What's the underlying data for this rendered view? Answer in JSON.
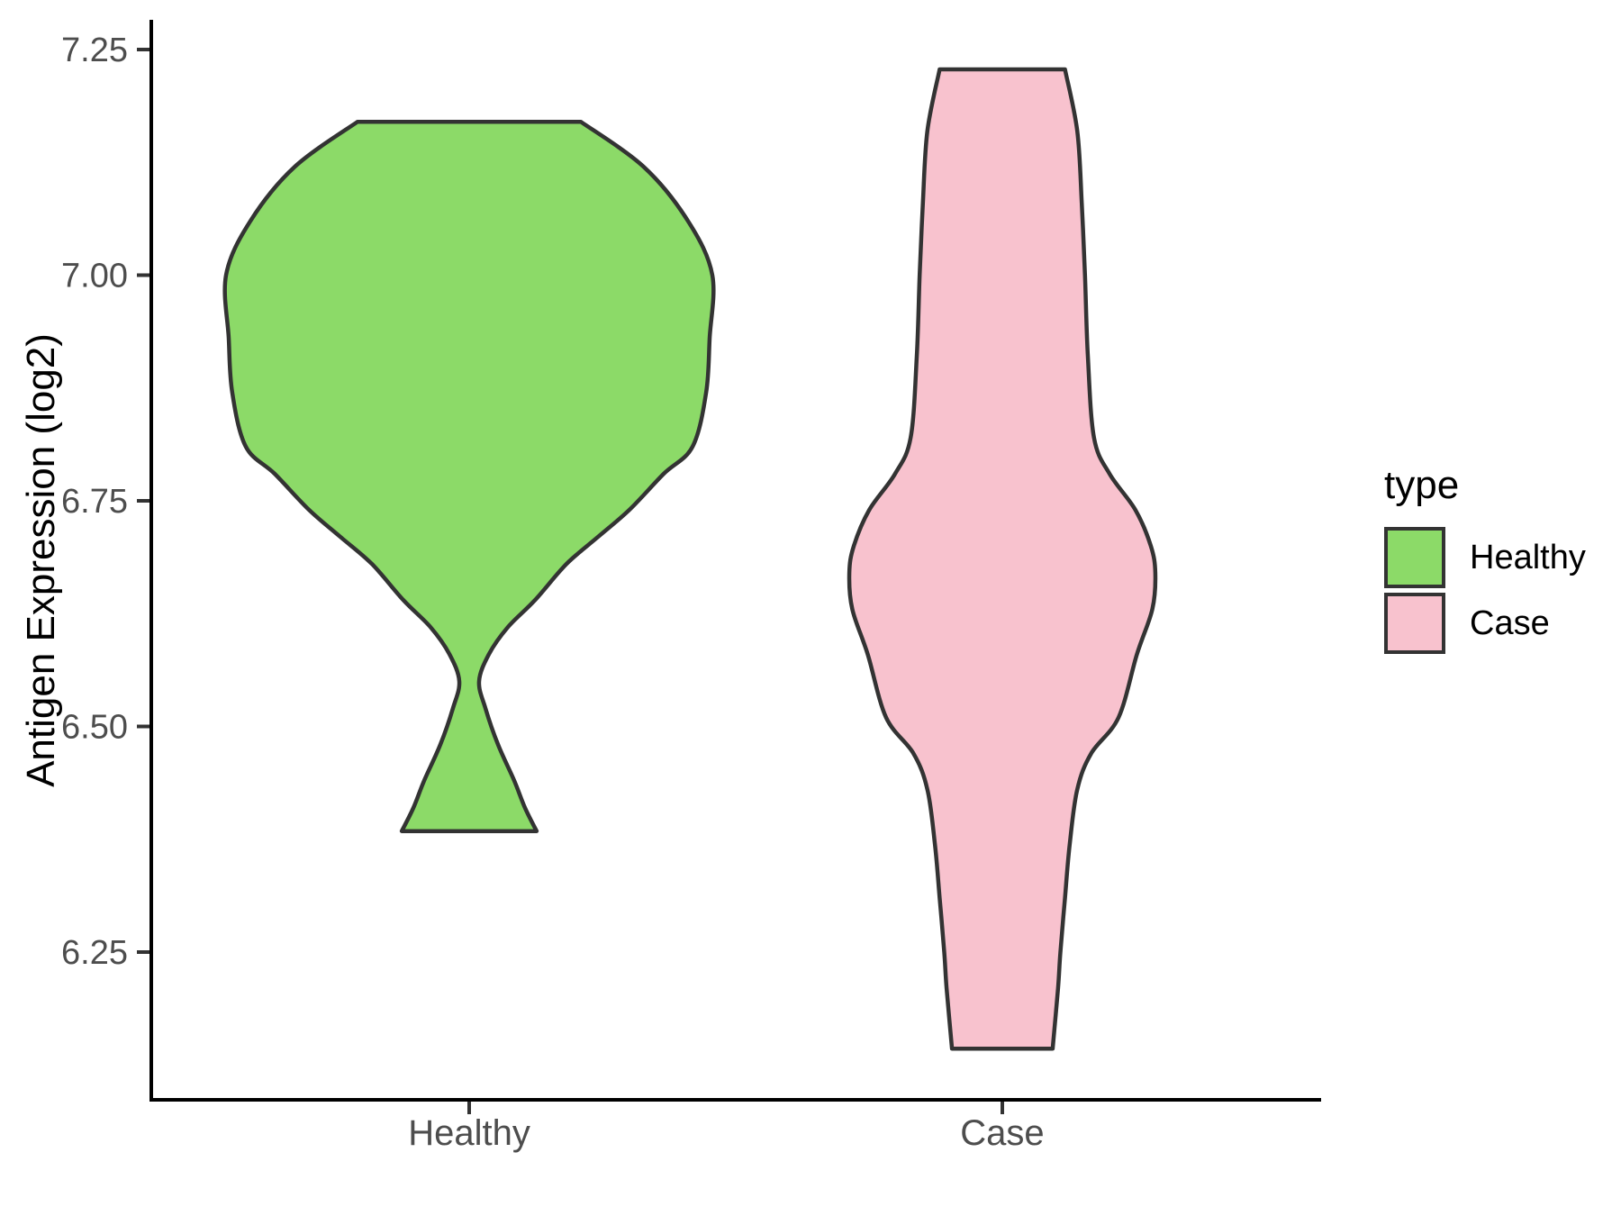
{
  "chart_data": {
    "type": "violin",
    "title": "",
    "xlabel": "",
    "ylabel": "Antigen Expression (log2)",
    "categories": [
      "Healthy",
      "Case"
    ],
    "ylim": [
      6.085,
      7.283
    ],
    "yticks": [
      {
        "v": 7.25,
        "label": "7.25"
      },
      {
        "v": 7.0,
        "label": "7.00"
      },
      {
        "v": 6.75,
        "label": "6.75"
      },
      {
        "v": 6.5,
        "label": "6.50"
      },
      {
        "v": 6.25,
        "label": "6.25"
      }
    ],
    "grid": false,
    "legend_title": "type",
    "legend_position": "right",
    "series": [
      {
        "name": "Healthy",
        "fill": "#8CDA68",
        "outline": "#333333",
        "data_range": [
          6.384,
          7.17
        ],
        "profile": [
          [
            7.17,
            0.419
          ],
          [
            7.12,
            0.655
          ],
          [
            7.06,
            0.821
          ],
          [
            7.0,
            0.912
          ],
          [
            6.93,
            0.902
          ],
          [
            6.87,
            0.889
          ],
          [
            6.81,
            0.838
          ],
          [
            6.78,
            0.73
          ],
          [
            6.74,
            0.601
          ],
          [
            6.71,
            0.483
          ],
          [
            6.68,
            0.365
          ],
          [
            6.64,
            0.247
          ],
          [
            6.61,
            0.145
          ],
          [
            6.58,
            0.074
          ],
          [
            6.55,
            0.037
          ],
          [
            6.52,
            0.061
          ],
          [
            6.48,
            0.108
          ],
          [
            6.44,
            0.169
          ],
          [
            6.41,
            0.209
          ],
          [
            6.384,
            0.253
          ]
        ]
      },
      {
        "name": "Case",
        "fill": "#F8C2CE",
        "outline": "#333333",
        "data_range": [
          6.143,
          7.228
        ],
        "profile": [
          [
            7.228,
            0.235
          ],
          [
            7.16,
            0.281
          ],
          [
            7.08,
            0.298
          ],
          [
            7.0,
            0.31
          ],
          [
            6.91,
            0.321
          ],
          [
            6.82,
            0.344
          ],
          [
            6.78,
            0.402
          ],
          [
            6.74,
            0.499
          ],
          [
            6.7,
            0.557
          ],
          [
            6.67,
            0.574
          ],
          [
            6.63,
            0.563
          ],
          [
            6.58,
            0.505
          ],
          [
            6.51,
            0.436
          ],
          [
            6.47,
            0.333
          ],
          [
            6.43,
            0.281
          ],
          [
            6.37,
            0.253
          ],
          [
            6.31,
            0.235
          ],
          [
            6.25,
            0.218
          ],
          [
            6.21,
            0.209
          ],
          [
            6.143,
            0.189
          ]
        ]
      }
    ],
    "colors": {
      "axis_line": "#000000",
      "tick_mark": "#333333",
      "tick_label": "#4D4D4D",
      "text": "#000000",
      "background": "#FFFFFF"
    }
  }
}
